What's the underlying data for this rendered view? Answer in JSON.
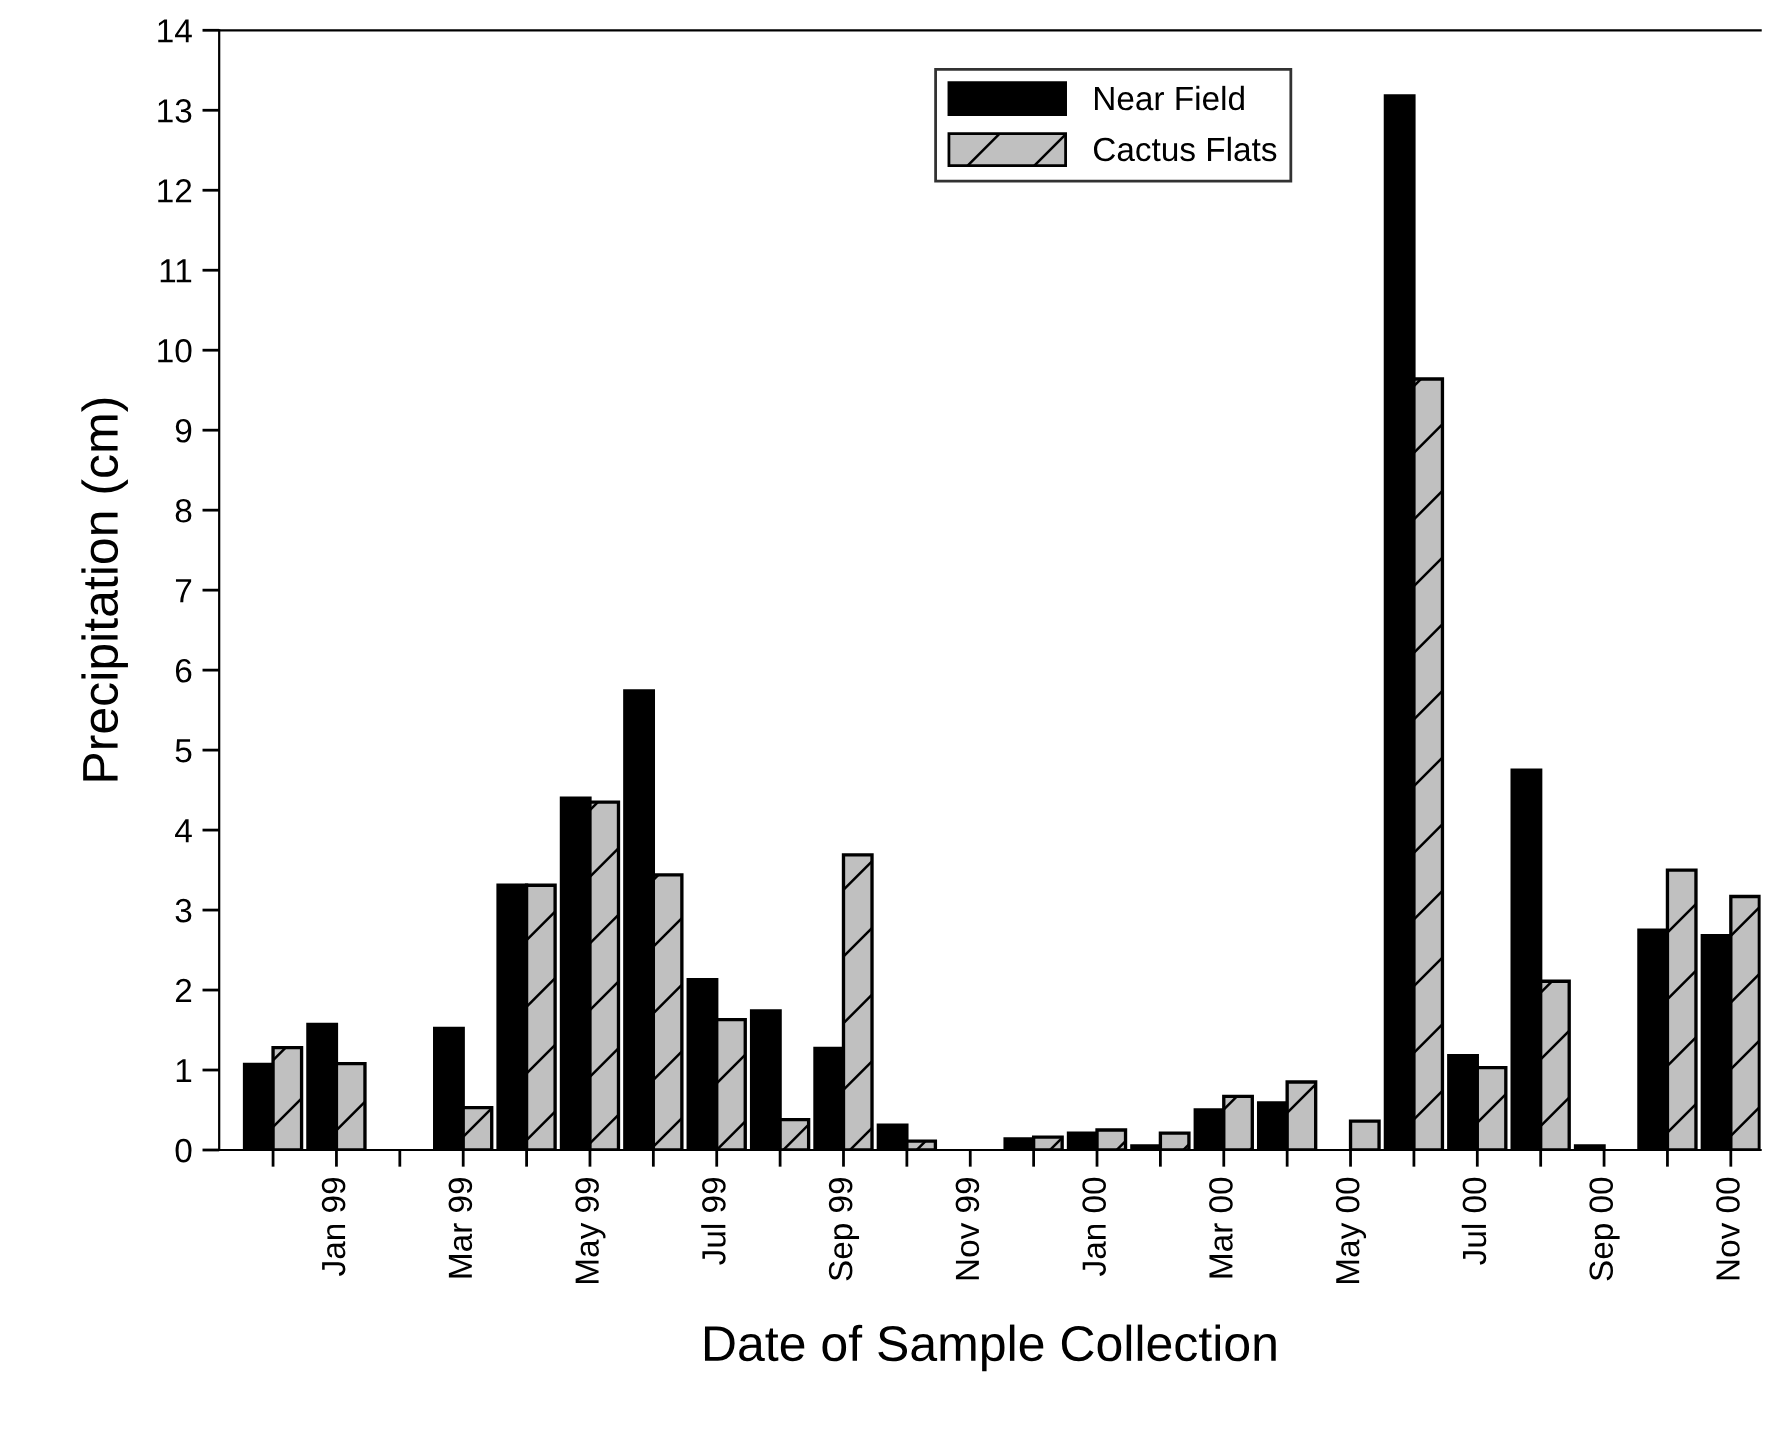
{
  "chart_data": {
    "type": "bar",
    "xlabel": "Date of Sample Collection",
    "ylabel": "Precipitation (cm)",
    "categories": [
      null,
      "Jan 99",
      null,
      "Mar 99",
      null,
      "May 99",
      null,
      "Jul 99",
      null,
      "Sep 99",
      null,
      "Nov 99",
      null,
      "Jan 00",
      null,
      "Mar 00",
      null,
      "May 00",
      null,
      "Jul 00",
      null,
      "Sep 00",
      null,
      "Nov 00"
    ],
    "series": [
      {
        "name": "Near Field",
        "color": "#000000",
        "values": [
          1.07,
          1.57,
          null,
          1.52,
          3.31,
          4.4,
          5.74,
          2.13,
          1.74,
          1.27,
          0.31,
          null,
          0.14,
          0.21,
          0.05,
          0.5,
          0.59,
          null,
          13.18,
          1.18,
          4.75,
          0.05,
          2.75,
          2.68
        ]
      },
      {
        "name": "Cactus Flats",
        "color": "#c0c0c0",
        "values": [
          1.28,
          1.08,
          null,
          0.53,
          3.31,
          4.35,
          3.44,
          1.63,
          0.38,
          3.69,
          0.11,
          null,
          0.16,
          0.25,
          0.21,
          0.67,
          0.85,
          0.36,
          9.64,
          1.03,
          2.11,
          null,
          3.5,
          3.17
        ]
      }
    ],
    "ylim": [
      0,
      14
    ],
    "yticks": [
      0,
      1,
      2,
      3,
      4,
      5,
      6,
      7,
      8,
      9,
      10,
      11,
      12,
      13,
      14
    ],
    "grid": false,
    "legend": "top"
  }
}
